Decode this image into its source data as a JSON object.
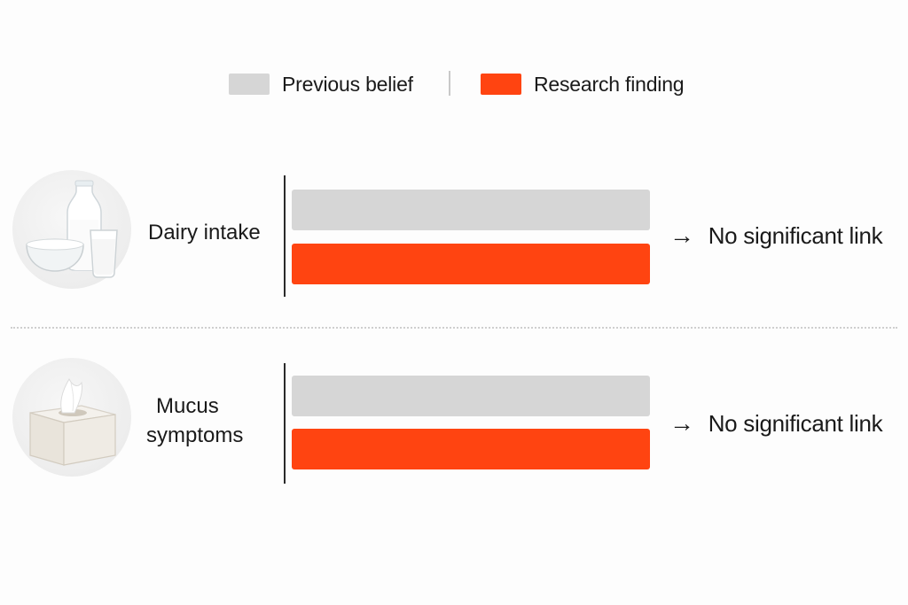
{
  "chart_data": {
    "type": "bar",
    "orientation": "horizontal",
    "title": "",
    "xlabel": "",
    "ylabel": "",
    "xlim": [
      0,
      1
    ],
    "grid": false,
    "legend_placement": "top-center",
    "categories": [
      "Dairy intake",
      "Mucus symptoms"
    ],
    "series": [
      {
        "name": "Previous belief",
        "color": "#d6d6d6",
        "values": [
          1,
          1
        ]
      },
      {
        "name": "Research finding",
        "color": "#ff4411",
        "values": [
          1,
          1
        ]
      }
    ],
    "annotations": [
      "No significant link",
      "No significant link"
    ]
  },
  "labels": {
    "row1_line1": "Dairy intake",
    "row2_line1": "Mucus",
    "row2_line2": "symptoms"
  },
  "icons": {
    "row1": "dairy-products-icon",
    "row2": "tissue-box-icon"
  }
}
